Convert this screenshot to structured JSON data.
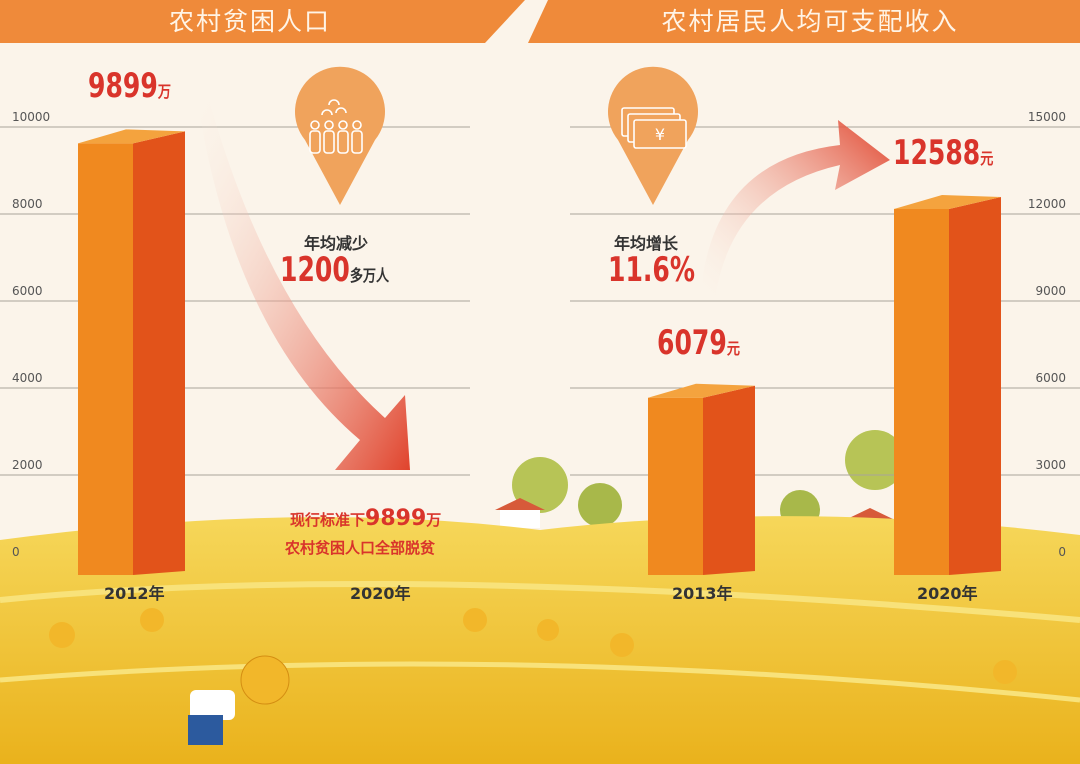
{
  "chart_data": [
    {
      "type": "bar",
      "title": "农村贫困人口",
      "categories": [
        "2012年",
        "2020年"
      ],
      "values": [
        9899,
        0
      ],
      "data_labels": [
        {
          "value": "9899",
          "unit": "万"
        }
      ],
      "yticks": [
        "0",
        "2000",
        "4000",
        "6000",
        "8000",
        "10000"
      ],
      "ylim": [
        0,
        10000
      ],
      "grid": true,
      "axis_side": "left",
      "annotation": {
        "label": "年均减少",
        "value": "1200",
        "unit": "多万人"
      },
      "note": {
        "line1_prefix": "现行标准下",
        "line1_value": "9899",
        "line1_unit": "万",
        "line2": "农村贫困人口全部脱贫"
      },
      "icon": "people-group-pin-icon",
      "trend": "down"
    },
    {
      "type": "bar",
      "title": "农村居民人均可支配收入",
      "categories": [
        "2013年",
        "2020年"
      ],
      "values": [
        6079,
        12588
      ],
      "data_labels": [
        {
          "value": "6079",
          "unit": "元"
        },
        {
          "value": "12588",
          "unit": "元"
        }
      ],
      "yticks": [
        "0",
        "3000",
        "6000",
        "9000",
        "12000",
        "15000"
      ],
      "ylim": [
        0,
        15000
      ],
      "grid": true,
      "axis_side": "right",
      "annotation": {
        "label": "年均增长",
        "value": "11.6%"
      },
      "icon": "money-yuan-pin-icon",
      "trend": "up"
    }
  ],
  "colors": {
    "header": "#ef8a3a",
    "bar_front": "#f0891f",
    "bar_side": "#e2531a",
    "label_red": "#d9342b",
    "field": "#f4c83a",
    "background": "#fbf4ea"
  }
}
